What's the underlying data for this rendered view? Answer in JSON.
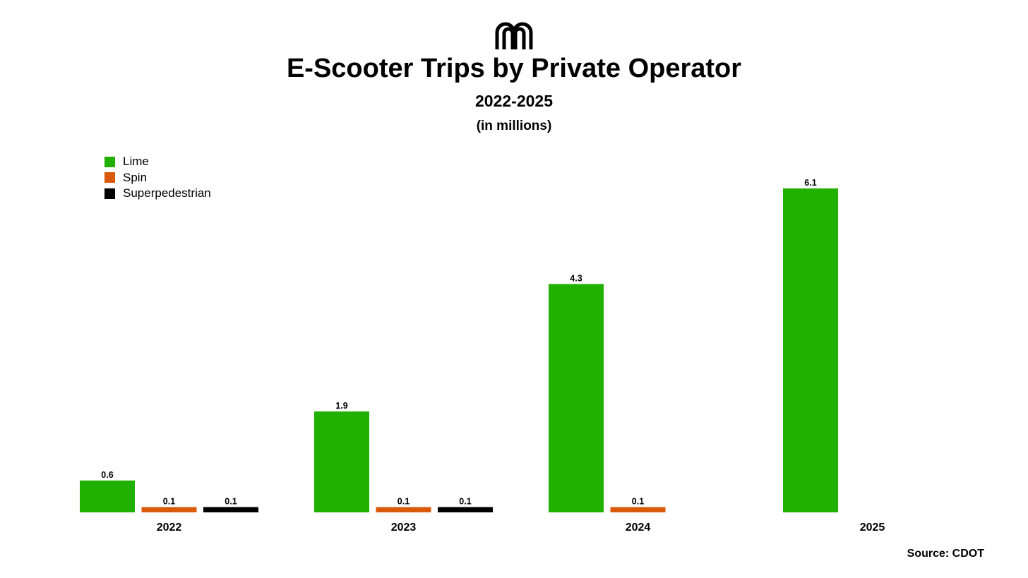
{
  "header": {
    "logo_icon": "arch-logo-icon",
    "title": "E-Scooter Trips by Private Operator",
    "subtitle": "2022-2025",
    "unit": "(in millions)"
  },
  "footer": {
    "source": "Source: CDOT"
  },
  "colors": {
    "Lime": "#21b000",
    "Spin": "#d95a0b",
    "Superpedestrian": "#000000"
  },
  "chart_data": {
    "type": "bar",
    "title": "E-Scooter Trips by Private Operator",
    "subtitle": "2022-2025",
    "ylabel": "",
    "xlabel": "",
    "grid": false,
    "legend": {
      "position": "top-left",
      "entries": [
        "Lime",
        "Spin",
        "Superpedestrian"
      ]
    },
    "ylim": [
      0,
      6.1
    ],
    "categories": [
      "2022",
      "2023",
      "2024",
      "2025"
    ],
    "series": [
      {
        "name": "Lime",
        "values": [
          0.6,
          1.9,
          4.3,
          6.1
        ],
        "labels": [
          "0.6",
          "1.9",
          "4.3",
          "6.1"
        ]
      },
      {
        "name": "Spin",
        "values": [
          0.1,
          0.1,
          0.1,
          null
        ],
        "labels": [
          "0.1",
          "0.1",
          "0.1",
          ""
        ]
      },
      {
        "name": "Superpedestrian",
        "values": [
          0.1,
          0.1,
          null,
          null
        ],
        "labels": [
          "0.1",
          "0.1",
          "",
          ""
        ]
      }
    ]
  }
}
